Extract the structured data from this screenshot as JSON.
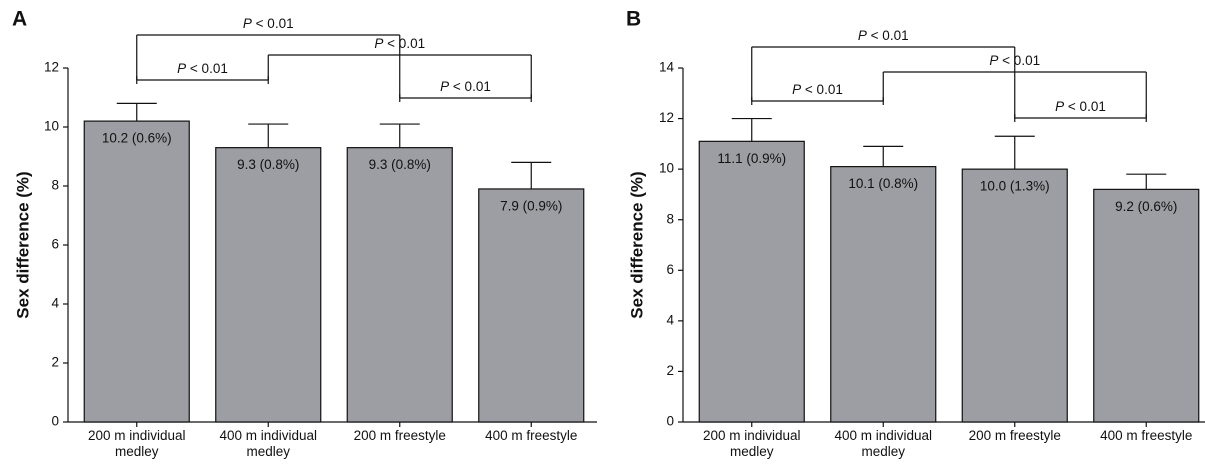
{
  "chart_data": [
    {
      "type": "bar",
      "panel": "A",
      "ylabel": "Sex difference (%)",
      "categories": [
        "200 m individual medley",
        "400 m individual medley",
        "200 m freestyle",
        "400 m freestyle"
      ],
      "values": [
        10.2,
        9.3,
        9.3,
        7.9
      ],
      "errors": [
        0.6,
        0.8,
        0.8,
        0.9
      ],
      "value_labels": [
        "10.2 (0.6%)",
        "9.3 (0.8%)",
        "9.3 (0.8%)",
        "7.9 (0.9%)"
      ],
      "color": "#9d9ea3",
      "ylim": [
        0,
        12
      ],
      "yticks": [
        0,
        2,
        4,
        6,
        8,
        10,
        12
      ],
      "annotations": [
        {
          "from": 0,
          "to": 2,
          "label": "P < 0.01"
        },
        {
          "from": 1,
          "to": 3,
          "label": "P < 0.01"
        },
        {
          "from": 0,
          "to": 1,
          "label": "P < 0.01"
        },
        {
          "from": 2,
          "to": 3,
          "label": "P < 0.01"
        }
      ]
    },
    {
      "type": "bar",
      "panel": "B",
      "ylabel": "Sex difference (%)",
      "categories": [
        "200 m individual medley",
        "400 m individual medley",
        "200 m freestyle",
        "400 m freestyle"
      ],
      "values": [
        11.1,
        10.1,
        10.0,
        9.2
      ],
      "errors": [
        0.9,
        0.8,
        1.3,
        0.6
      ],
      "value_labels": [
        "11.1 (0.9%)",
        "10.1 (0.8%)",
        "10.0 (1.3%)",
        "9.2 (0.6%)"
      ],
      "color": "#9d9ea3",
      "ylim": [
        0,
        14
      ],
      "yticks": [
        0,
        2,
        4,
        6,
        8,
        10,
        12,
        14
      ],
      "annotations": [
        {
          "from": 0,
          "to": 2,
          "label": "P < 0.01"
        },
        {
          "from": 1,
          "to": 3,
          "label": "P < 0.01"
        },
        {
          "from": 0,
          "to": 1,
          "label": "P < 0.01"
        },
        {
          "from": 2,
          "to": 3,
          "label": "P < 0.01"
        }
      ]
    }
  ]
}
